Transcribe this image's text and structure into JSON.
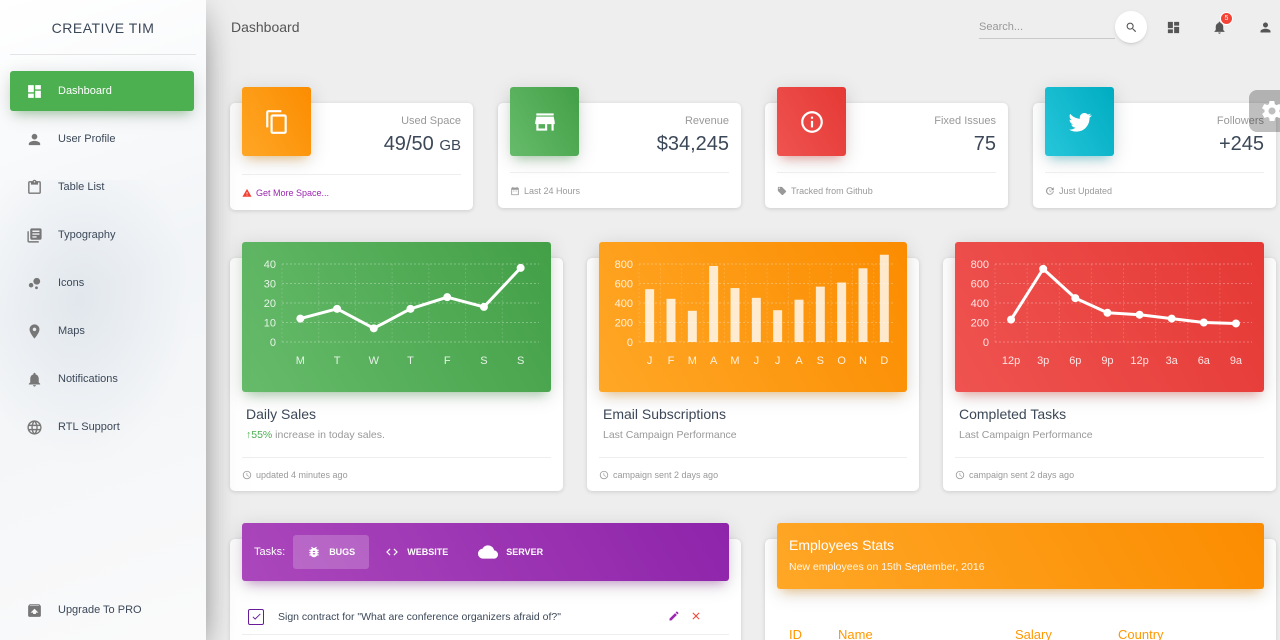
{
  "brand": "CREATIVE TIM",
  "sidebar": {
    "items": [
      {
        "label": "Dashboard",
        "icon": "dashboard-icon",
        "active": true
      },
      {
        "label": "User Profile",
        "icon": "person-icon"
      },
      {
        "label": "Table List",
        "icon": "clipboard-icon"
      },
      {
        "label": "Typography",
        "icon": "library-books-icon"
      },
      {
        "label": "Icons",
        "icon": "bubble-chart-icon"
      },
      {
        "label": "Maps",
        "icon": "location-icon"
      },
      {
        "label": "Notifications",
        "icon": "bell-icon"
      },
      {
        "label": "RTL Support",
        "icon": "language-icon"
      }
    ],
    "pro": {
      "label": "Upgrade To PRO",
      "icon": "unarchive-icon"
    }
  },
  "header": {
    "title": "Dashboard",
    "search_placeholder": "Search...",
    "notifications_count": "5"
  },
  "stats": [
    {
      "category": "Used Space",
      "value": "49/50",
      "unit": "GB",
      "footer": "Get More Space...",
      "footer_icon": "warning-icon",
      "color": "#ff9800"
    },
    {
      "category": "Revenue",
      "value": "$34,245",
      "footer": "Last 24 Hours",
      "footer_icon": "date-range-icon",
      "color": "#4caf50"
    },
    {
      "category": "Fixed Issues",
      "value": "75",
      "footer": "Tracked from Github",
      "footer_icon": "tag-icon",
      "color": "#f44336"
    },
    {
      "category": "Followers",
      "value": "+245",
      "footer": "Just Updated",
      "footer_icon": "update-icon",
      "color": "#00bcd4"
    }
  ],
  "charts": [
    {
      "title": "Daily Sales",
      "sub_pct": "55%",
      "sub_text": " increase in today sales.",
      "footer": "updated 4 minutes ago"
    },
    {
      "title": "Email Subscriptions",
      "sub": "Last Campaign Performance",
      "footer": "campaign sent 2 days ago"
    },
    {
      "title": "Completed Tasks",
      "sub": "Last Campaign Performance",
      "footer": "campaign sent 2 days ago"
    }
  ],
  "chart_data": [
    {
      "type": "line",
      "categories": [
        "M",
        "T",
        "W",
        "T",
        "F",
        "S",
        "S"
      ],
      "values": [
        12,
        17,
        7,
        17,
        23,
        18,
        38
      ],
      "yticks": [
        0,
        10,
        20,
        30,
        40
      ],
      "ylim": [
        0,
        40
      ],
      "grid": true
    },
    {
      "type": "bar",
      "categories": [
        "J",
        "F",
        "M",
        "A",
        "M",
        "J",
        "J",
        "A",
        "S",
        "O",
        "N",
        "D"
      ],
      "values": [
        542,
        443,
        320,
        780,
        553,
        453,
        326,
        434,
        568,
        610,
        756,
        895
      ],
      "yticks": [
        0,
        200,
        400,
        600,
        800
      ],
      "ylim": [
        0,
        800
      ],
      "grid": true
    },
    {
      "type": "line",
      "categories": [
        "12p",
        "3p",
        "6p",
        "9p",
        "12p",
        "3a",
        "6a",
        "9a"
      ],
      "values": [
        230,
        750,
        450,
        300,
        280,
        240,
        200,
        190
      ],
      "yticks": [
        0,
        200,
        400,
        600,
        800
      ],
      "ylim": [
        0,
        800
      ],
      "grid": true
    }
  ],
  "tasks": {
    "label": "Tasks:",
    "tabs": [
      {
        "label": "BUGS",
        "icon": "bug-icon",
        "active": true
      },
      {
        "label": "WEBSITE",
        "icon": "code-icon"
      },
      {
        "label": "SERVER",
        "icon": "cloud-icon"
      }
    ],
    "rows": [
      {
        "text": "Sign contract for \"What are conference organizers afraid of?\"",
        "checked": true
      }
    ]
  },
  "employees": {
    "title": "Employees Stats",
    "subtitle": "New employees on 15th September, 2016",
    "columns": [
      "ID",
      "Name",
      "Salary",
      "Country"
    ]
  }
}
